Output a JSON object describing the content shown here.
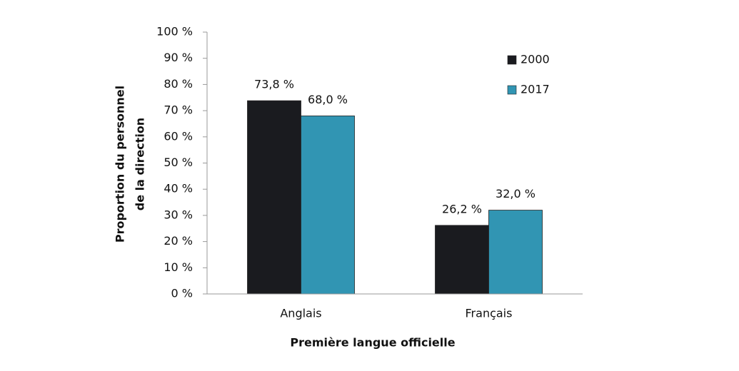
{
  "chart_data": {
    "type": "bar",
    "xlabel": "Première langue officielle",
    "ylabel": [
      "Proportion du personnel",
      "de la direction"
    ],
    "categories": [
      "Anglais",
      "Français"
    ],
    "series": [
      {
        "name": "2000",
        "color": "#1a1b1f",
        "values": [
          73.8,
          26.2
        ],
        "value_labels": [
          "73,8 %",
          "26,2 %"
        ]
      },
      {
        "name": "2017",
        "color": "#3195b3",
        "values": [
          68.0,
          32.0
        ],
        "value_labels": [
          "68,0 %",
          "32,0 %"
        ]
      }
    ],
    "ylim": [
      0,
      100
    ],
    "yticks": [
      {
        "value": 0,
        "label": "0 %"
      },
      {
        "value": 10,
        "label": "10 %"
      },
      {
        "value": 20,
        "label": "20 %"
      },
      {
        "value": 30,
        "label": "30 %"
      },
      {
        "value": 40,
        "label": "40 %"
      },
      {
        "value": 50,
        "label": "50 %"
      },
      {
        "value": 60,
        "label": "60 %"
      },
      {
        "value": 70,
        "label": "70 %"
      },
      {
        "value": 80,
        "label": "80 %"
      },
      {
        "value": 90,
        "label": "90 %"
      },
      {
        "value": 100,
        "label": "100 %"
      }
    ],
    "grid": false,
    "legend": "upper-right"
  }
}
